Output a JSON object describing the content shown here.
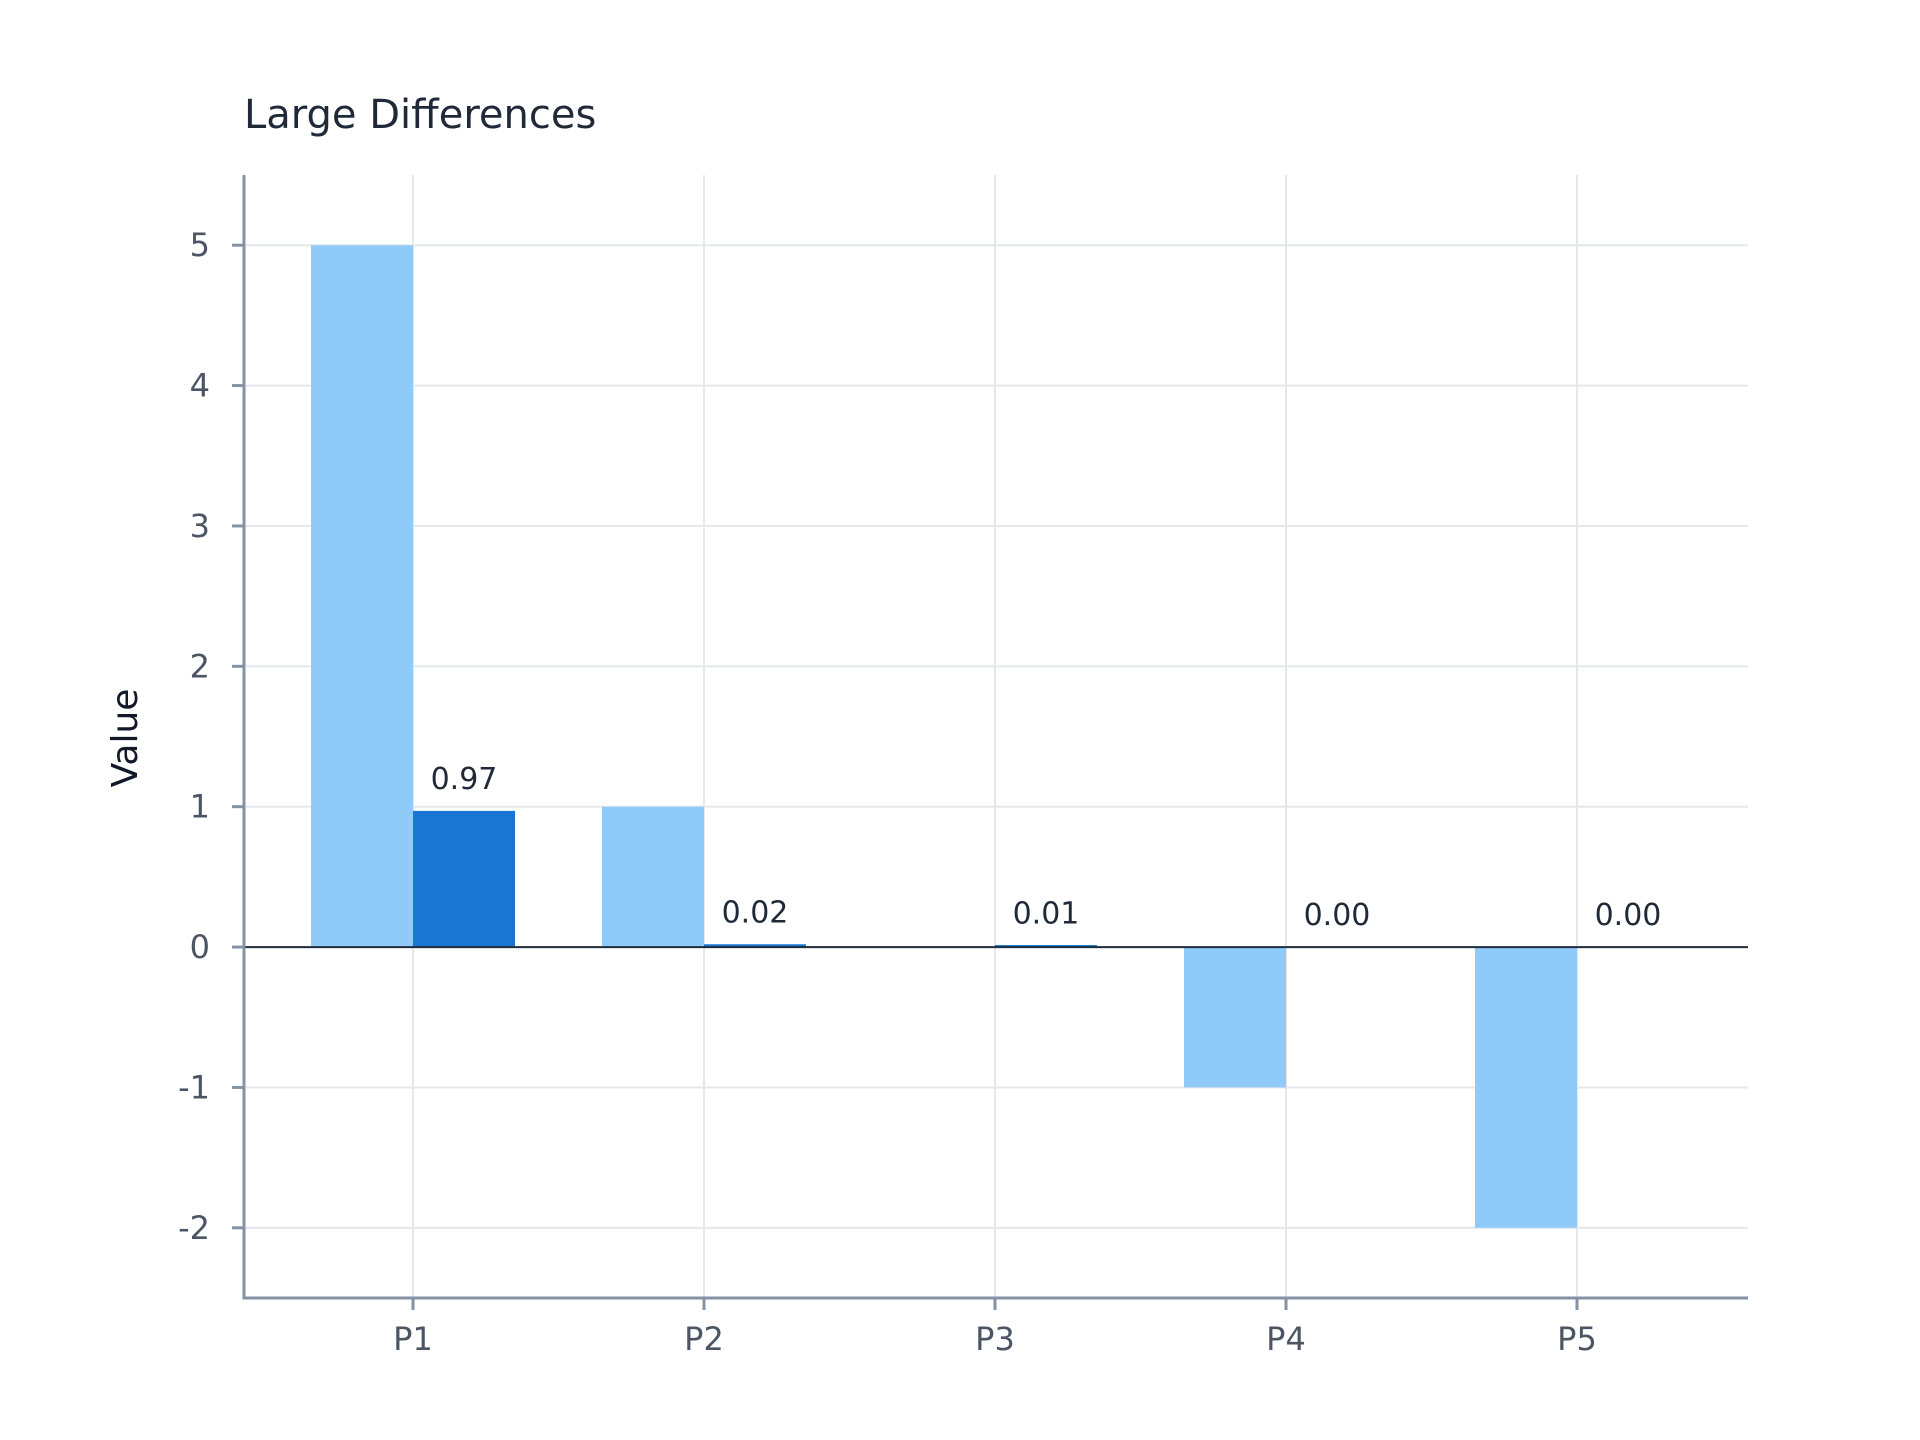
{
  "chart_data": {
    "type": "bar",
    "title": "Large Differences",
    "xlabel": "",
    "ylabel": "Value",
    "categories": [
      "P1",
      "P2",
      "P3",
      "P4",
      "P5"
    ],
    "series": [
      {
        "values": [
          5,
          1,
          0,
          -1,
          -2
        ],
        "color": "#90caf9"
      },
      {
        "values": [
          0.97,
          0.02,
          0.01,
          0.0,
          0.0
        ],
        "color": "#1976d2",
        "labels": [
          "0.97",
          "0.02",
          "0.01",
          "0.00",
          "0.00"
        ]
      }
    ],
    "yticks": [
      -2,
      -1,
      0,
      1,
      2,
      3,
      4,
      5
    ],
    "ylim": [
      -2.5,
      5.5
    ],
    "grid": true,
    "legend": "none"
  }
}
